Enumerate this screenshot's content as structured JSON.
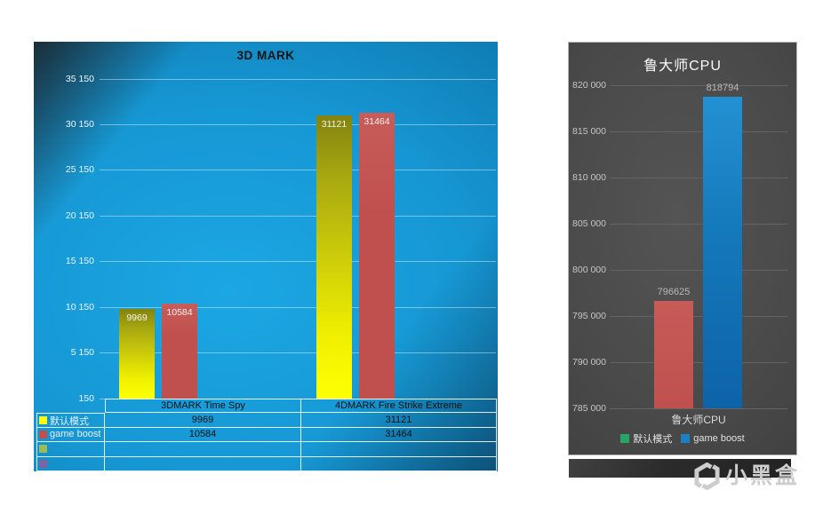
{
  "watermark": {
    "text": "小黑盒"
  },
  "chart_data": [
    {
      "type": "bar",
      "title": "3D MARK",
      "categories": [
        "3DMARK Time Spy",
        "4DMARK Fire Strike Extreme"
      ],
      "series": [
        {
          "name": "默认模式",
          "color": "#ffff00",
          "values": [
            9969,
            31121
          ]
        },
        {
          "name": "game boost",
          "color": "#c0504d",
          "values": [
            10584,
            31464
          ]
        },
        {
          "name": "",
          "color": "#9bbb59",
          "values": [
            "",
            ""
          ]
        },
        {
          "name": "",
          "color": "#8064a2",
          "values": [
            "",
            ""
          ]
        }
      ],
      "y_ticks": [
        150,
        5150,
        10150,
        15150,
        20150,
        25150,
        30150,
        35150
      ],
      "y_tick_labels": [
        "150",
        "5 150",
        "10 150",
        "15 150",
        "20 150",
        "25 150",
        "30 150",
        "35 150"
      ],
      "ylim": [
        150,
        35150
      ],
      "grid": true,
      "data_labels_shown": true,
      "legend_position": "data-table-left",
      "background_style": "blue-radial-gradient"
    },
    {
      "type": "bar",
      "title": "鲁大师CPU",
      "categories": [
        "鲁大师CPU"
      ],
      "series": [
        {
          "name": "默认模式",
          "legend_color": "#26a566",
          "bar_color": "#c0504d",
          "values": [
            796625
          ]
        },
        {
          "name": "game boost",
          "legend_color": "#1b80c4",
          "bar_color": "#1f86c8",
          "values": [
            818794
          ]
        }
      ],
      "y_ticks": [
        785000,
        790000,
        795000,
        800000,
        805000,
        810000,
        815000,
        820000
      ],
      "y_tick_labels": [
        "785 000",
        "790 000",
        "795 000",
        "800 000",
        "805 000",
        "810 000",
        "815 000",
        "820 000"
      ],
      "ylim": [
        785000,
        820000
      ],
      "grid": true,
      "data_labels_shown": true,
      "legend_position": "bottom",
      "background_style": "dark-gray-radial-gradient"
    }
  ]
}
